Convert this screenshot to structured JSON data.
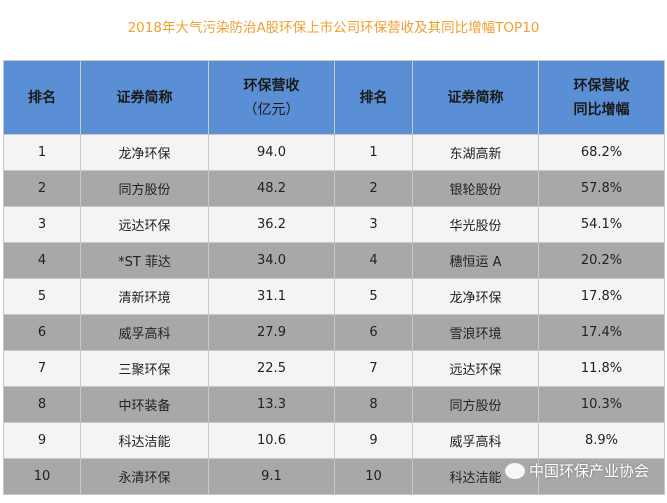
{
  "title": "2018年大气污染防治A股环保上市公司环保营收及其同比增幅TOP10",
  "headers": {
    "rank_left": "排名",
    "name_left": "证券简称",
    "revenue_line1": "环保营收",
    "revenue_line2": "（亿元）",
    "rank_right": "排名",
    "name_right": "证券简称",
    "growth_line1": "环保营收",
    "growth_line2": "同比增幅"
  },
  "rows": [
    {
      "rank": "1",
      "name": "龙净环保",
      "revenue": "94.0",
      "rank2": "1",
      "name2": "东湖高新",
      "growth": "68.2%"
    },
    {
      "rank": "2",
      "name": "同方股份",
      "revenue": "48.2",
      "rank2": "2",
      "name2": "银轮股份",
      "growth": "57.8%"
    },
    {
      "rank": "3",
      "name": "远达环保",
      "revenue": "36.2",
      "rank2": "3",
      "name2": "华光股份",
      "growth": "54.1%"
    },
    {
      "rank": "4",
      "name": "*ST 菲达",
      "revenue": "34.0",
      "rank2": "4",
      "name2": "穗恒运 A",
      "growth": "20.2%"
    },
    {
      "rank": "5",
      "name": "清新环境",
      "revenue": "31.1",
      "rank2": "5",
      "name2": "龙净环保",
      "growth": "17.8%"
    },
    {
      "rank": "6",
      "name": "威孚高科",
      "revenue": "27.9",
      "rank2": "6",
      "name2": "雪浪环境",
      "growth": "17.4%"
    },
    {
      "rank": "7",
      "name": "三聚环保",
      "revenue": "22.5",
      "rank2": "7",
      "name2": "远达环保",
      "growth": "11.8%"
    },
    {
      "rank": "8",
      "name": "中环装备",
      "revenue": "13.3",
      "rank2": "8",
      "name2": "同方股份",
      "growth": "10.3%"
    },
    {
      "rank": "9",
      "name": "科达洁能",
      "revenue": "10.6",
      "rank2": "9",
      "name2": "威孚高科",
      "growth": "8.9%"
    },
    {
      "rank": "10",
      "name": "永清环保",
      "revenue": "9.1",
      "rank2": "10",
      "name2": "科达洁能",
      "growth": ""
    }
  ],
  "watermark": {
    "text": "中国环保产业协会",
    "icon": "wechat-icon"
  },
  "colors": {
    "title": "#f0a030",
    "header": "#5a8fd6",
    "row_light": "#f4f4f4",
    "row_dark": "#a8a8a8"
  }
}
